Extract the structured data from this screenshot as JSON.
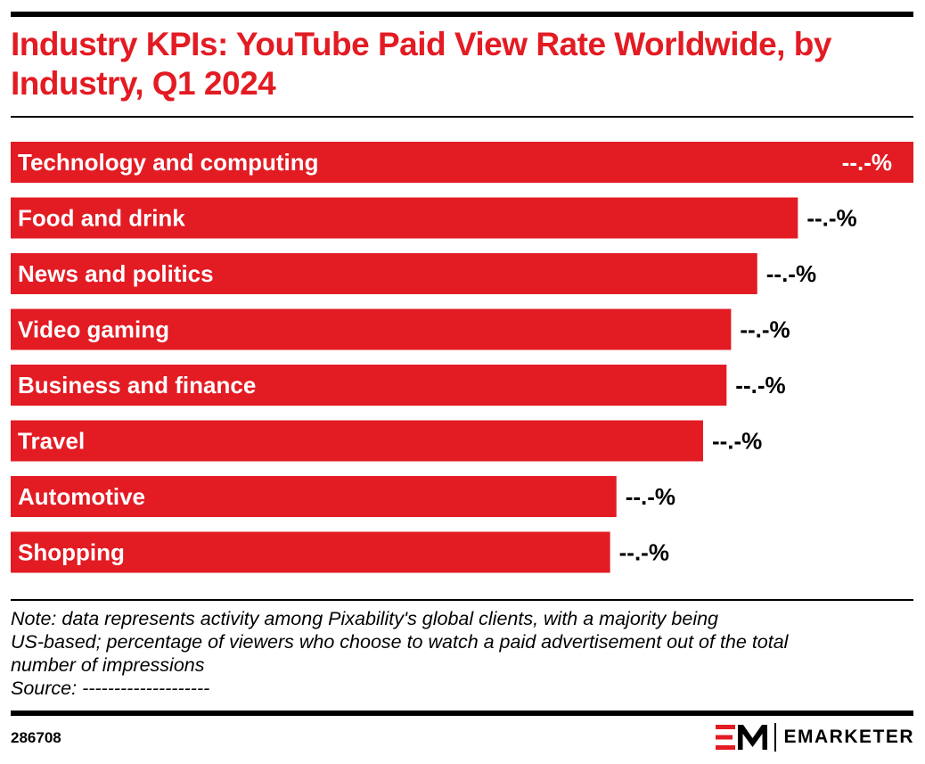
{
  "header": {
    "title": "Industry KPIs: YouTube Paid View Rate Worldwide, by Industry, Q1 2024"
  },
  "chart_data": {
    "type": "bar",
    "orientation": "horizontal",
    "title": "Industry KPIs: YouTube Paid View Rate Worldwide, by Industry, Q1 2024",
    "categories": [
      "Technology and computing",
      "Food and drink",
      "News and politics",
      "Video gaming",
      "Business and finance",
      "Travel",
      "Automotive",
      "Shopping"
    ],
    "values": [
      100,
      87.2,
      82.7,
      79.8,
      79.3,
      76.7,
      67.1,
      66.4
    ],
    "value_labels": [
      "--.-%",
      "--.-%",
      "--.-%",
      "--.-%",
      "--.-%",
      "--.-%",
      "--.-%",
      "--.-%"
    ],
    "xlim": [
      0,
      100
    ],
    "grid": false,
    "legend": "none",
    "bar_color": "#e31b23",
    "label_color": "#ffffff",
    "value_label_color": "#000000"
  },
  "footer": {
    "note_lines": [
      "Note: data represents activity among Pixability's global clients, with a majority being",
      "US-based; percentage of viewers who choose to watch a paid advertisement out of the total",
      "number of impressions"
    ],
    "source": "Source: --------------------",
    "chart_id": "286708",
    "brand_name": "EMARKETER",
    "brand_icon": "em-logo-icon"
  },
  "colors": {
    "accent": "#e31b23",
    "text": "#000000",
    "background": "#ffffff"
  }
}
